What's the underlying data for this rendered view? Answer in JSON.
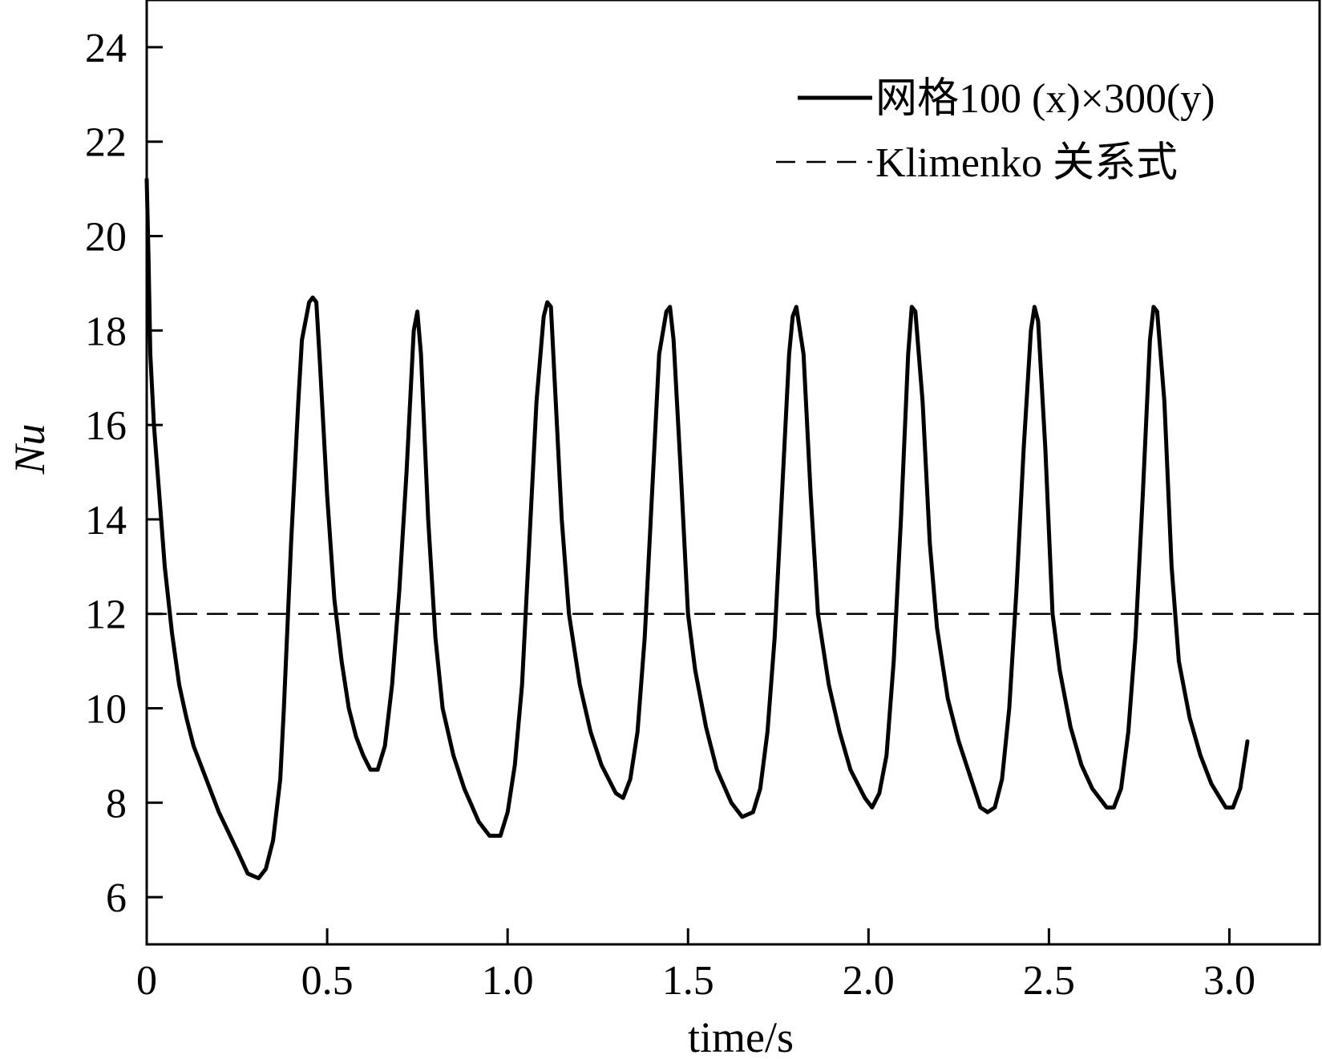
{
  "chart_data": {
    "type": "line",
    "xlabel": "time/s",
    "ylabel": "Nu",
    "xlim": [
      0,
      3.25
    ],
    "ylim": [
      5,
      25
    ],
    "x_ticks": [
      0,
      0.5,
      1.0,
      1.5,
      2.0,
      2.5,
      3.0
    ],
    "x_tick_labels": [
      "0",
      "0.5",
      "1.0",
      "1.5",
      "2.0",
      "2.5",
      "3.0"
    ],
    "y_ticks": [
      6,
      8,
      10,
      12,
      14,
      16,
      18,
      20,
      22,
      24
    ],
    "y_tick_labels": [
      "6",
      "8",
      "10",
      "12",
      "14",
      "16",
      "18",
      "20",
      "22",
      "24"
    ],
    "grid": false,
    "legend_position": "top-right",
    "series": [
      {
        "name": "网格100 (x)×300(y)",
        "style": "solid",
        "color": "#000000",
        "x": [
          0,
          0.005,
          0.01,
          0.02,
          0.035,
          0.05,
          0.07,
          0.09,
          0.11,
          0.13,
          0.16,
          0.2,
          0.25,
          0.28,
          0.31,
          0.33,
          0.35,
          0.37,
          0.38,
          0.4,
          0.42,
          0.43,
          0.45,
          0.46,
          0.47,
          0.48,
          0.5,
          0.52,
          0.54,
          0.56,
          0.58,
          0.6,
          0.62,
          0.64,
          0.66,
          0.68,
          0.7,
          0.72,
          0.73,
          0.74,
          0.75,
          0.76,
          0.78,
          0.8,
          0.82,
          0.85,
          0.88,
          0.92,
          0.95,
          0.98,
          1.0,
          1.02,
          1.04,
          1.06,
          1.08,
          1.1,
          1.11,
          1.12,
          1.13,
          1.15,
          1.17,
          1.2,
          1.23,
          1.26,
          1.3,
          1.32,
          1.34,
          1.36,
          1.38,
          1.4,
          1.42,
          1.44,
          1.45,
          1.46,
          1.48,
          1.5,
          1.52,
          1.55,
          1.58,
          1.62,
          1.65,
          1.68,
          1.7,
          1.72,
          1.74,
          1.76,
          1.78,
          1.79,
          1.8,
          1.82,
          1.84,
          1.86,
          1.89,
          1.92,
          1.95,
          1.99,
          2.01,
          2.03,
          2.05,
          2.07,
          2.09,
          2.11,
          2.12,
          2.13,
          2.15,
          2.17,
          2.19,
          2.22,
          2.25,
          2.28,
          2.31,
          2.33,
          2.35,
          2.37,
          2.39,
          2.41,
          2.43,
          2.45,
          2.46,
          2.47,
          2.49,
          2.51,
          2.53,
          2.56,
          2.59,
          2.62,
          2.66,
          2.68,
          2.7,
          2.72,
          2.74,
          2.76,
          2.78,
          2.79,
          2.8,
          2.82,
          2.84,
          2.86,
          2.89,
          2.92,
          2.95,
          2.99,
          3.01,
          3.03,
          3.05
        ],
        "y": [
          21.2,
          19.5,
          17.5,
          16.0,
          14.5,
          13.0,
          11.6,
          10.5,
          9.8,
          9.2,
          8.6,
          7.8,
          7.0,
          6.5,
          6.4,
          6.6,
          7.2,
          8.5,
          10.0,
          13.5,
          16.5,
          17.8,
          18.6,
          18.7,
          18.6,
          17.3,
          14.5,
          12.3,
          11.0,
          10.0,
          9.4,
          9.0,
          8.7,
          8.7,
          9.2,
          10.5,
          12.5,
          15.0,
          16.5,
          18.0,
          18.4,
          17.5,
          14.0,
          11.5,
          10.0,
          9.0,
          8.3,
          7.6,
          7.3,
          7.3,
          7.8,
          8.8,
          10.5,
          13.5,
          16.5,
          18.3,
          18.6,
          18.5,
          17.0,
          14.0,
          12.0,
          10.5,
          9.5,
          8.8,
          8.2,
          8.1,
          8.5,
          9.5,
          11.5,
          14.5,
          17.5,
          18.4,
          18.5,
          17.8,
          15.0,
          12.0,
          10.8,
          9.6,
          8.7,
          8.0,
          7.7,
          7.8,
          8.3,
          9.5,
          11.5,
          14.5,
          17.5,
          18.3,
          18.5,
          17.5,
          14.5,
          12.0,
          10.5,
          9.5,
          8.7,
          8.1,
          7.9,
          8.2,
          9.0,
          11.0,
          14.0,
          17.5,
          18.5,
          18.4,
          16.5,
          13.5,
          11.7,
          10.2,
          9.3,
          8.6,
          7.9,
          7.8,
          7.9,
          8.5,
          10.0,
          12.5,
          15.5,
          18.0,
          18.5,
          18.2,
          15.5,
          12.0,
          10.8,
          9.6,
          8.8,
          8.3,
          7.9,
          7.9,
          8.3,
          9.5,
          11.5,
          14.5,
          17.8,
          18.5,
          18.4,
          16.5,
          13.0,
          11.0,
          9.8,
          9.0,
          8.4,
          7.9,
          7.9,
          8.3,
          9.3
        ]
      },
      {
        "name": "Klimenko 关系式",
        "style": "dashed",
        "color": "#000000",
        "x": [
          0,
          3.25
        ],
        "y": [
          12,
          12
        ]
      }
    ]
  }
}
